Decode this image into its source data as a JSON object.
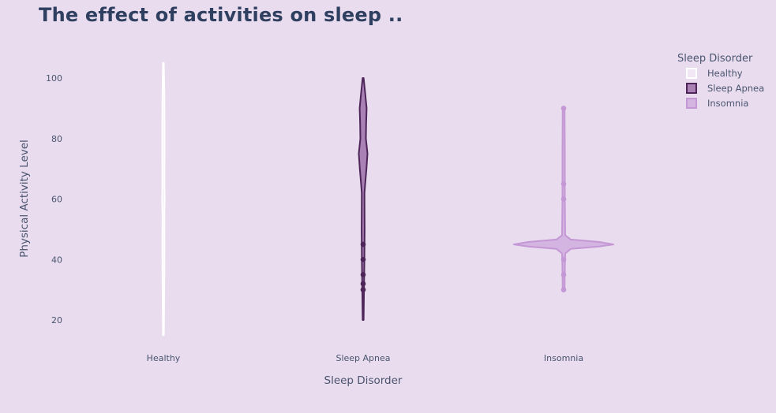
{
  "chart_data": {
    "type": "violin",
    "title": "The effect of activities on sleep ..",
    "xlabel": "Sleep Disorder",
    "ylabel": "Physical Activity Level",
    "ylim": [
      10,
      106
    ],
    "yticks": [
      20,
      40,
      60,
      80,
      100
    ],
    "categories": [
      "Healthy",
      "Sleep Apnea",
      "Insomnia"
    ],
    "legend": {
      "title": "Sleep Disorder",
      "position": "top-right"
    },
    "series": [
      {
        "name": "Healthy",
        "category": "Healthy",
        "fill": "#f7eef8",
        "line": "#ffffff",
        "fill_opacity": 0.6,
        "range": [
          15,
          105
        ],
        "outlier_points": [],
        "density": [
          [
            15,
            0.6
          ],
          [
            25,
            0.9
          ],
          [
            35,
            1.2
          ],
          [
            45,
            1.3
          ],
          [
            55,
            1.2
          ],
          [
            60,
            1.6
          ],
          [
            65,
            1.3
          ],
          [
            75,
            1.4
          ],
          [
            85,
            1.4
          ],
          [
            95,
            1.2
          ],
          [
            105,
            0.5
          ]
        ]
      },
      {
        "name": "Sleep Apnea",
        "category": "Sleep Apnea",
        "fill": "#9a6aa6",
        "line": "#4d2558",
        "fill_opacity": 0.8,
        "range": [
          20,
          100
        ],
        "outlier_points": [
          30,
          32,
          35,
          40,
          45
        ],
        "density": [
          [
            20,
            0.6
          ],
          [
            30,
            1.1
          ],
          [
            40,
            1.6
          ],
          [
            50,
            1.9
          ],
          [
            55,
            1.8
          ],
          [
            62,
            1.7
          ],
          [
            65,
            2.6
          ],
          [
            70,
            4.2
          ],
          [
            75,
            5.5
          ],
          [
            80,
            3.5
          ],
          [
            85,
            3.8
          ],
          [
            90,
            4.4
          ],
          [
            95,
            2.6
          ],
          [
            100,
            0.6
          ]
        ]
      },
      {
        "name": "Insomnia",
        "category": "Insomnia",
        "fill": "#c9a0d8",
        "line": "#c497d5",
        "fill_opacity": 0.65,
        "range": [
          30,
          90
        ],
        "outlier_points": [
          30,
          35,
          40,
          60,
          65,
          90
        ],
        "density": [
          [
            30,
            1.2
          ],
          [
            38,
            1.6
          ],
          [
            42,
            2
          ],
          [
            43.5,
            9
          ],
          [
            44.3,
            45
          ],
          [
            45,
            63
          ],
          [
            45.8,
            45
          ],
          [
            46.6,
            9
          ],
          [
            48,
            2
          ],
          [
            60,
            1.5
          ],
          [
            75,
            1.5
          ],
          [
            90,
            1.2
          ]
        ]
      }
    ]
  }
}
